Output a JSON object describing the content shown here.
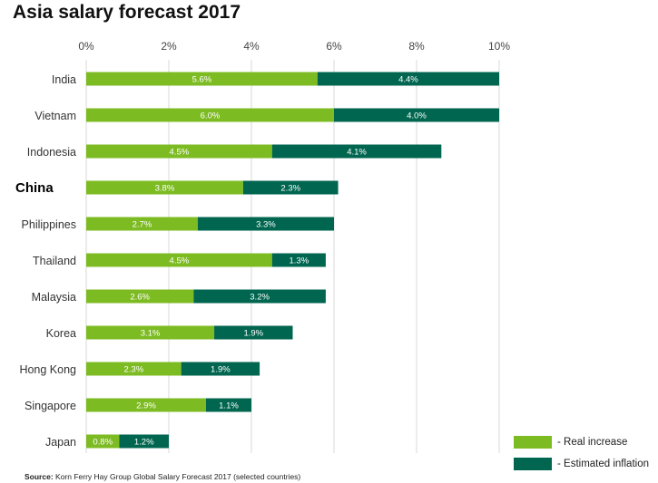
{
  "title": "Asia salary forecast 2017",
  "source_label": "Source:",
  "source_text": "Korn Ferry Hay Group Global Salary Forecast 2017 (selected countries)",
  "colors": {
    "real": "#7dbb23",
    "inflation": "#00664f",
    "grid": "#d9d9d9"
  },
  "legend": {
    "real": "- Real increase",
    "inflation": "- Estimated inflation"
  },
  "chart_data": {
    "type": "bar",
    "orientation": "horizontal",
    "stacked": true,
    "title": "Asia salary forecast 2017",
    "xlim": [
      0,
      10
    ],
    "x_ticks": [
      "0%",
      "2%",
      "4%",
      "6%",
      "8%",
      "10%"
    ],
    "x_tick_values": [
      0,
      2,
      4,
      6,
      8,
      10
    ],
    "x_axis_position": "top",
    "grid": true,
    "legend_position": "bottom-right",
    "categories": [
      "India",
      "Vietnam",
      "Indonesia",
      "China",
      "Philippines",
      "Thailand",
      "Malaysia",
      "Korea",
      "Hong Kong",
      "Singapore",
      "Japan"
    ],
    "highlight": "China",
    "series": [
      {
        "name": "- Real increase",
        "values": [
          5.6,
          6.0,
          4.5,
          3.8,
          2.7,
          4.5,
          2.6,
          3.1,
          2.3,
          2.9,
          0.8
        ],
        "labels": [
          "5.6%",
          "6.0%",
          "4.5%",
          "3.8%",
          "2.7%",
          "4.5%",
          "2.6%",
          "3.1%",
          "2.3%",
          "2.9%",
          "0.8%"
        ]
      },
      {
        "name": "- Estimated inflation",
        "values": [
          4.4,
          4.0,
          4.1,
          2.3,
          3.3,
          1.3,
          3.2,
          1.9,
          1.9,
          1.1,
          1.2
        ],
        "labels": [
          "4.4%",
          "4.0%",
          "4.1%",
          "2.3%",
          "3.3%",
          "1.3%",
          "3.2%",
          "1.9%",
          "1.9%",
          "1.1%",
          "1.2%"
        ]
      }
    ]
  }
}
